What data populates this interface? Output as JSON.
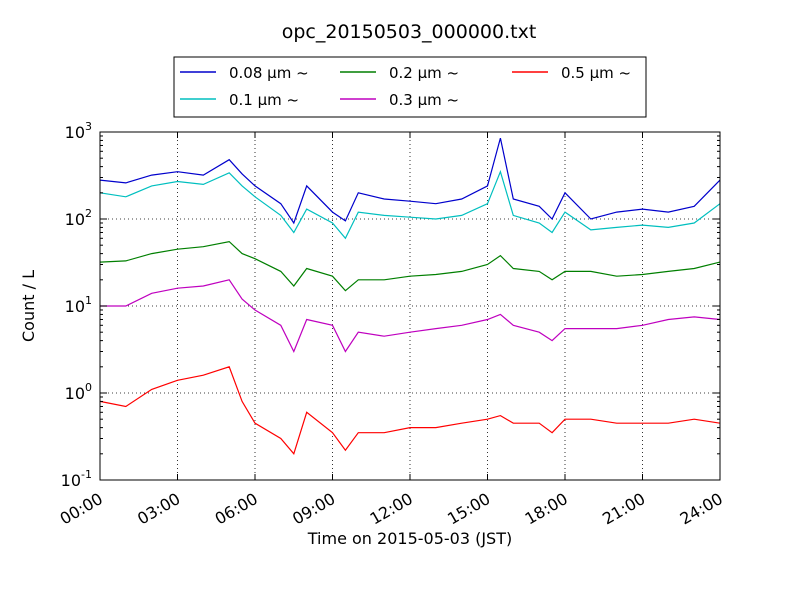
{
  "chart_data": {
    "type": "line",
    "title": "opc_20150503_000000.txt",
    "xlabel": "Time on 2015-05-03 (JST)",
    "ylabel": "Count / L",
    "yscale": "log",
    "xlim": [
      "2015-05-03 00:00",
      "2015-05-04 00:00"
    ],
    "ylim": [
      0.1,
      1000
    ],
    "grid": true,
    "legend_placement": "top-center",
    "x_tick_labels": [
      "00:00",
      "03:00",
      "06:00",
      "09:00",
      "12:00",
      "15:00",
      "18:00",
      "21:00",
      "24:00"
    ],
    "y_ticks": [
      {
        "base": "10",
        "exp": "-1"
      },
      {
        "base": "10",
        "exp": "0"
      },
      {
        "base": "10",
        "exp": "1"
      },
      {
        "base": "10",
        "exp": "2"
      },
      {
        "base": "10",
        "exp": "3"
      }
    ],
    "x_hours": [
      0,
      1,
      2,
      3,
      4,
      5,
      5.5,
      6,
      7,
      7.5,
      8,
      9,
      9.5,
      10,
      11,
      12,
      13,
      14,
      15,
      15.5,
      16,
      17,
      17.5,
      18,
      19,
      20,
      21,
      22,
      23,
      24
    ],
    "series": [
      {
        "name": "0.08 μm ~",
        "color": "#0000cc",
        "values": [
          280,
          260,
          320,
          350,
          320,
          480,
          330,
          240,
          150,
          90,
          240,
          120,
          95,
          200,
          170,
          160,
          150,
          170,
          240,
          850,
          170,
          140,
          100,
          200,
          100,
          120,
          130,
          120,
          140,
          280
        ]
      },
      {
        "name": "0.1 μm ~",
        "color": "#00bfbf",
        "values": [
          200,
          180,
          240,
          270,
          250,
          340,
          240,
          180,
          110,
          70,
          130,
          90,
          60,
          120,
          110,
          105,
          100,
          110,
          150,
          350,
          110,
          90,
          70,
          120,
          75,
          80,
          85,
          80,
          90,
          150
        ]
      },
      {
        "name": "0.2 μm ~",
        "color": "#007f00",
        "values": [
          32,
          33,
          40,
          45,
          48,
          55,
          40,
          35,
          25,
          17,
          27,
          22,
          15,
          20,
          20,
          22,
          23,
          25,
          30,
          38,
          27,
          25,
          20,
          25,
          25,
          22,
          23,
          25,
          27,
          32
        ]
      },
      {
        "name": "0.3 μm ~",
        "color": "#bf00bf",
        "values": [
          10,
          10,
          14,
          16,
          17,
          20,
          12,
          9,
          6,
          3,
          7,
          6,
          3,
          5,
          4.5,
          5,
          5.5,
          6,
          7,
          8,
          6,
          5,
          4,
          5.5,
          5.5,
          5.5,
          6,
          7,
          7.5,
          7
        ]
      },
      {
        "name": "0.5 μm ~",
        "color": "#ff0000",
        "values": [
          0.8,
          0.7,
          1.1,
          1.4,
          1.6,
          2.0,
          0.8,
          0.45,
          0.3,
          0.2,
          0.6,
          0.35,
          0.22,
          0.35,
          0.35,
          0.4,
          0.4,
          0.45,
          0.5,
          0.55,
          0.45,
          0.45,
          0.35,
          0.5,
          0.5,
          0.45,
          0.45,
          0.45,
          0.5,
          0.45
        ]
      }
    ]
  }
}
